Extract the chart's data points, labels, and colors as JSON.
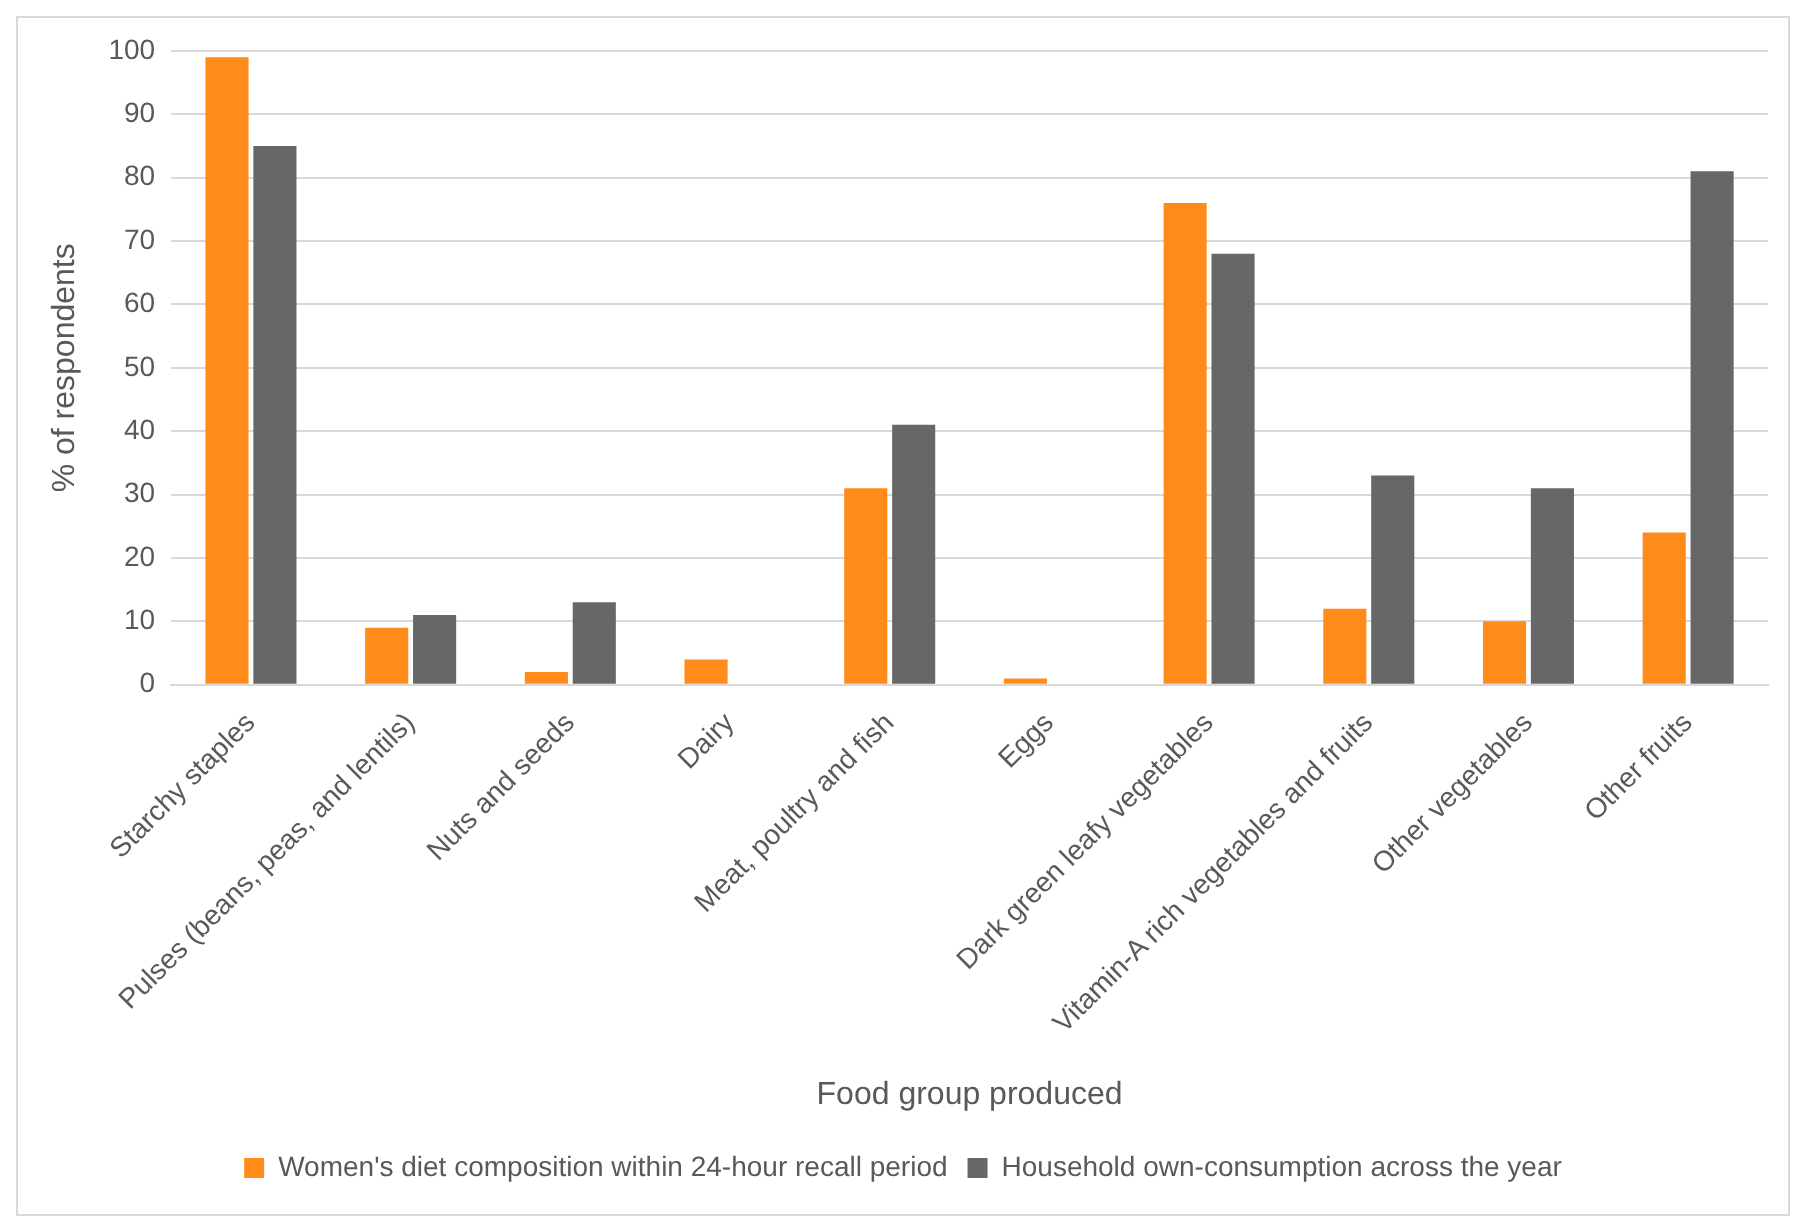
{
  "chart_data": {
    "type": "bar",
    "xlabel": "Food group produced",
    "ylabel": "% of respondents",
    "categories": [
      "Starchy staples",
      "Pulses (beans, peas, and lentils)",
      "Nuts and seeds",
      "Dairy",
      "Meat, poultry and fish",
      "Eggs",
      "Dark green leafy vegetables",
      "Vitamin-A rich vegetables and fruits",
      "Other vegetables",
      "Other fruits"
    ],
    "series": [
      {
        "name": "Women's diet composition within 24-hour recall period",
        "color": "#ff8c1a",
        "values": [
          99,
          9,
          2,
          4,
          31,
          1,
          76,
          12,
          10,
          24
        ]
      },
      {
        "name": "Household own-consumption across the year",
        "color": "#676767",
        "values": [
          85,
          11,
          13,
          0,
          41,
          0,
          68,
          33,
          31,
          81
        ]
      }
    ],
    "ylim": [
      0,
      100
    ],
    "yticks": [
      0,
      10,
      20,
      30,
      40,
      50,
      60,
      70,
      80,
      90,
      100
    ],
    "grid": "y",
    "legend": "bottom"
  }
}
